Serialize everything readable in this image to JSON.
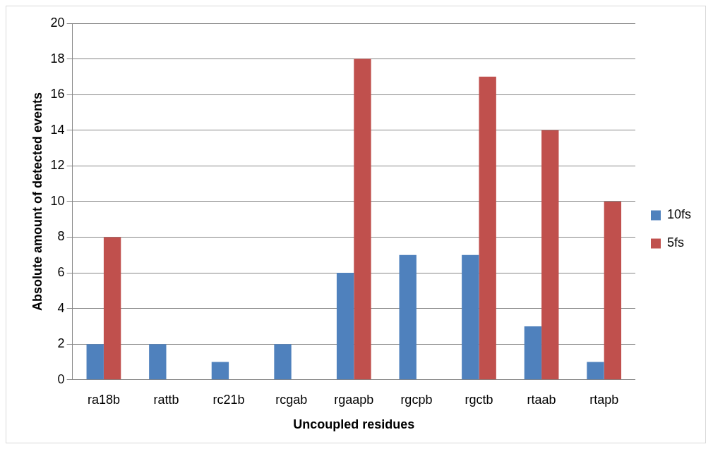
{
  "chart_data": {
    "type": "bar",
    "xlabel": "Uncoupled residues",
    "ylabel": "Absolute amount of detected events",
    "categories": [
      "ra18b",
      "rattb",
      "rc21b",
      "rcgab",
      "rgaapb",
      "rgcpb",
      "rgctb",
      "rtaab",
      "rtapb"
    ],
    "series": [
      {
        "name": "10fs",
        "color": "#4f81bd",
        "values": [
          2,
          2,
          1,
          2,
          6,
          7,
          7,
          3,
          1
        ]
      },
      {
        "name": "5fs",
        "color": "#c0504d",
        "values": [
          8,
          0,
          0,
          0,
          18,
          0,
          17,
          14,
          10
        ]
      }
    ],
    "ylim": [
      0,
      20
    ],
    "yticks": [
      0,
      2,
      4,
      6,
      8,
      10,
      12,
      14,
      16,
      18,
      20
    ],
    "grid": "y",
    "legend": "right"
  }
}
